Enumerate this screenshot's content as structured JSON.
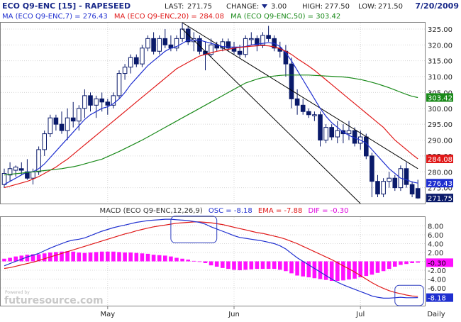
{
  "header": {
    "symbol_label": "ECO Q9-ENC [15] - RAPESEED",
    "last_label": "LAST:",
    "last_value": "271.75",
    "change_label": "CHANGE:",
    "change_value": "3.00",
    "high_label": "HIGH:",
    "high_value": "277.50",
    "low_label": "LOW:",
    "low_value": "271.50",
    "date": "7/20/2009"
  },
  "ma_legend": [
    {
      "label": "MA (ECO Q9-ENC,7) = 276.43",
      "color": "#1f2fd0"
    },
    {
      "label": "MA (ECO Q9-ENC,20) = 284.08",
      "color": "#e01818"
    },
    {
      "label": "MA (ECO Q9-ENC,50) = 303.42",
      "color": "#1a8a1a"
    }
  ],
  "macd_legend": {
    "title": "MACD (ECO Q9-ENC,12,26,9)",
    "osc": "OSC = -8.18",
    "ema": "EMA = -7.88",
    "dif": "DIF = -0.30"
  },
  "watermark": "futuresource.com",
  "watermark_small": "Powered by",
  "x_labels": [
    "May",
    "Jun",
    "Jul",
    "Daily"
  ],
  "colors": {
    "candle": "#0a1a6a",
    "ma7": "#1f2fd0",
    "ma20": "#e01818",
    "ma50": "#1a8a1a",
    "macd_line": "#1f2fd0",
    "signal_line": "#e01818",
    "histogram": "#ff10ff",
    "channel": "#000000"
  },
  "chart_data": [
    {
      "type": "candlestick",
      "title": "ECO Q9-ENC [15] - RAPESEED",
      "ylim": [
        270,
        327
      ],
      "y_ticks": [
        275.0,
        280.0,
        285.0,
        290.0,
        295.0,
        300.0,
        305.0,
        310.0,
        315.0,
        320.0,
        325.0
      ],
      "x_labels": [
        "May",
        "Jun",
        "Jul"
      ],
      "badges": [
        {
          "value": "303.42",
          "series": "ma50"
        },
        {
          "value": "284.08",
          "series": "ma20"
        },
        {
          "value": "276.43",
          "series": "ma7"
        },
        {
          "value": "271.75",
          "series": "last"
        }
      ],
      "ohlc": [
        [
          276,
          281,
          275,
          279.5
        ],
        [
          279,
          283,
          277,
          281
        ],
        [
          280.5,
          282,
          278.5,
          281.5
        ],
        [
          281,
          283,
          279,
          280.5
        ],
        [
          280,
          284,
          277.5,
          278
        ],
        [
          278,
          281,
          276,
          280
        ],
        [
          280,
          288,
          279,
          287
        ],
        [
          287,
          293,
          285,
          292
        ],
        [
          292,
          298,
          291,
          297
        ],
        [
          297,
          298,
          293,
          295
        ],
        [
          295,
          299,
          292,
          293
        ],
        [
          293,
          300,
          290,
          297
        ],
        [
          297,
          302,
          294,
          296
        ],
        [
          296,
          301,
          293,
          300
        ],
        [
          300,
          306,
          297,
          304
        ],
        [
          304,
          305,
          299,
          301
        ],
        [
          301,
          304,
          297,
          303
        ],
        [
          303,
          305,
          299,
          302
        ],
        [
          302,
          303,
          298,
          301
        ],
        [
          301,
          305,
          300,
          304
        ],
        [
          304,
          312,
          303,
          311
        ],
        [
          311,
          314,
          309,
          313
        ],
        [
          313,
          317,
          311,
          316
        ],
        [
          316,
          317,
          313,
          314
        ],
        [
          314,
          320,
          313,
          319
        ],
        [
          319,
          323,
          318,
          322
        ],
        [
          322,
          324,
          317,
          318
        ],
        [
          318,
          323,
          317,
          322
        ],
        [
          322,
          325,
          319,
          320
        ],
        [
          320,
          323,
          318,
          319
        ],
        [
          319,
          323,
          318,
          322
        ],
        [
          322,
          327,
          321,
          325
        ],
        [
          325,
          326,
          320,
          321
        ],
        [
          321,
          324,
          318,
          322
        ],
        [
          322,
          323,
          317,
          318
        ],
        [
          318,
          321,
          312,
          317
        ],
        [
          317,
          322,
          316,
          320
        ],
        [
          320,
          321,
          318,
          319
        ],
        [
          319,
          322,
          318,
          321
        ],
        [
          321,
          322,
          318,
          319
        ],
        [
          319,
          321,
          317,
          318
        ],
        [
          318,
          320,
          316,
          317
        ],
        [
          317,
          323,
          316,
          322
        ],
        [
          322,
          324,
          320,
          322
        ],
        [
          322,
          323,
          318,
          320
        ],
        [
          320,
          324,
          319,
          323
        ],
        [
          323,
          326,
          321,
          322
        ],
        [
          322,
          323,
          318,
          319
        ],
        [
          319,
          321,
          316,
          318
        ],
        [
          318,
          320,
          310,
          314
        ],
        [
          314,
          316,
          300,
          303
        ],
        [
          303,
          306,
          298,
          301
        ],
        [
          301,
          303,
          298,
          299
        ],
        [
          299,
          300,
          297,
          298
        ],
        [
          298,
          299,
          296,
          298
        ],
        [
          298,
          299,
          288,
          290
        ],
        [
          290,
          295,
          289,
          294
        ],
        [
          294,
          295,
          290,
          291
        ],
        [
          291,
          296,
          289,
          293
        ],
        [
          293,
          295,
          289,
          292
        ],
        [
          292,
          296,
          290,
          293
        ],
        [
          293,
          294,
          288,
          289
        ],
        [
          289,
          293,
          287,
          291
        ],
        [
          291,
          292,
          284,
          285
        ],
        [
          285,
          286,
          272,
          277
        ],
        [
          277,
          279,
          272,
          273
        ],
        [
          273,
          278,
          272,
          277
        ],
        [
          277,
          280,
          275,
          278
        ],
        [
          278,
          279,
          274,
          275
        ],
        [
          275,
          282,
          274,
          281
        ],
        [
          281,
          283,
          275,
          276
        ],
        [
          276,
          277,
          272,
          273
        ],
        [
          274.75,
          277.5,
          271.5,
          271.75
        ]
      ],
      "ma_series": [
        {
          "key": "ma7",
          "values": [
            276,
            277,
            278,
            279,
            280,
            280,
            281,
            282.5,
            284.5,
            286.5,
            288.5,
            290.5,
            292.5,
            294.5,
            296.5,
            298,
            299,
            300,
            300.5,
            301.5,
            303,
            305,
            307.5,
            309.5,
            311.5,
            313.5,
            315,
            316.5,
            318,
            319,
            319.5,
            320.5,
            321.5,
            321.5,
            321.5,
            321,
            320.5,
            320,
            319.5,
            319.3,
            319.3,
            319.3,
            319.5,
            320,
            320.2,
            320.5,
            320.7,
            320.5,
            319.5,
            317.5,
            315,
            312,
            309,
            306,
            303,
            300,
            297.5,
            295.5,
            294,
            292.5,
            291.5,
            290.7,
            290,
            289,
            287,
            285,
            283,
            281,
            279.5,
            278,
            277.5,
            276.8,
            276.43
          ]
        },
        {
          "key": "ma20",
          "values": [
            275,
            275.5,
            276,
            276.5,
            277,
            277.7,
            278.5,
            279.5,
            280.5,
            281.5,
            282.8,
            284,
            285.5,
            287,
            288.5,
            290,
            291.5,
            293,
            294.5,
            296,
            297.5,
            299,
            300.5,
            302,
            303.5,
            305,
            306.5,
            308,
            309.5,
            311,
            312.5,
            313.5,
            314.5,
            315.5,
            316.5,
            317,
            317.5,
            318,
            318.3,
            318.6,
            319,
            319.2,
            319.4,
            319.6,
            319.7,
            319.8,
            319.7,
            319.4,
            318.8,
            318,
            317,
            315.7,
            314.5,
            313.3,
            312,
            310.5,
            309,
            307.5,
            306,
            304.5,
            303,
            301.5,
            300,
            298.5,
            297,
            295.5,
            294,
            292,
            290,
            288.5,
            287,
            285.5,
            284.08
          ]
        },
        {
          "key": "ma50",
          "values": [
            279,
            279.2,
            279.4,
            279.6,
            279.8,
            280,
            280.2,
            280.4,
            280.6,
            280.8,
            281,
            281.3,
            281.6,
            282,
            282.5,
            283,
            283.5,
            284,
            284.8,
            285.6,
            286.4,
            287.3,
            288.2,
            289.1,
            290,
            291,
            292,
            293,
            294,
            295,
            296,
            297,
            298,
            299,
            300,
            301,
            302,
            303,
            304,
            305,
            306,
            307,
            308,
            308.6,
            309.2,
            309.7,
            310,
            310.2,
            310.4,
            310.5,
            310.5,
            310.5,
            310.5,
            310.5,
            310.4,
            310.3,
            310.2,
            310.1,
            310,
            309.9,
            309.7,
            309.4,
            309.1,
            308.7,
            308.2,
            307.7,
            307.1,
            306.5,
            305.8,
            305.1,
            304.4,
            303.8,
            303.42
          ]
        }
      ],
      "channel_lines": [
        {
          "from": [
            31,
            327
          ],
          "to": [
            72,
            281
          ]
        },
        {
          "from": [
            31,
            325
          ],
          "to": [
            62,
            270
          ]
        }
      ]
    },
    {
      "type": "macd",
      "title": "MACD (ECO Q9-ENC,12,26,9)",
      "ylim": [
        -10,
        10
      ],
      "y_ticks": [
        8.0,
        6.0,
        4.0,
        2.0,
        0.0,
        -2.0,
        -4.0,
        -6.0
      ],
      "badges": [
        {
          "value": "-0.30",
          "series": "histogram"
        },
        {
          "value": "-8.18",
          "series": "osc"
        }
      ],
      "osc": [
        -1,
        -0.5,
        0,
        0.5,
        1,
        1.4,
        1.8,
        2.4,
        3,
        3.5,
        4,
        4.5,
        4.8,
        5,
        5.3,
        5.8,
        6.3,
        6.8,
        7.2,
        7.6,
        7.9,
        8.2,
        8.5,
        8.8,
        9,
        9.2,
        9.3,
        9.4,
        9.5,
        9.5,
        9.4,
        9.3,
        9.2,
        9,
        8.8,
        8.4,
        7.8,
        7.3,
        6.8,
        6.3,
        5.8,
        5.4,
        5.2,
        5,
        4.8,
        4.6,
        4.3,
        4,
        3.5,
        2.8,
        1.8,
        0.8,
        0,
        -0.8,
        -1.6,
        -2.4,
        -3.2,
        -4,
        -4.7,
        -5.3,
        -5.8,
        -6.3,
        -6.8,
        -7.3,
        -7.8,
        -8.1,
        -8.3,
        -8.3,
        -8.2,
        -8.1,
        -8.2,
        -8.2,
        -8.18
      ],
      "ema": [
        -1.6,
        -1.4,
        -1.1,
        -0.8,
        -0.5,
        -0.2,
        0.2,
        0.6,
        1,
        1.4,
        1.8,
        2.2,
        2.6,
        3,
        3.4,
        3.8,
        4.2,
        4.6,
        5,
        5.4,
        5.8,
        6.2,
        6.5,
        6.9,
        7.2,
        7.5,
        7.8,
        8,
        8.2,
        8.4,
        8.6,
        8.7,
        8.8,
        8.9,
        8.9,
        8.8,
        8.7,
        8.5,
        8.3,
        8,
        7.7,
        7.4,
        7.1,
        6.8,
        6.5,
        6.3,
        6,
        5.7,
        5.4,
        5,
        4.5,
        4,
        3.4,
        2.8,
        2.2,
        1.6,
        1,
        0.4,
        -0.3,
        -1,
        -1.7,
        -2.4,
        -3.2,
        -4,
        -4.8,
        -5.5,
        -6.1,
        -6.6,
        -7,
        -7.3,
        -7.6,
        -7.8,
        -7.88
      ],
      "dif": [
        0.6,
        0.8,
        1.1,
        1.3,
        1.5,
        1.6,
        1.6,
        1.8,
        2,
        2.1,
        2.2,
        2.3,
        2.2,
        2,
        1.9,
        2,
        2.1,
        2.2,
        2.2,
        2.2,
        2.1,
        2,
        2,
        1.9,
        1.8,
        1.7,
        1.5,
        1.4,
        1.3,
        1.1,
        0.8,
        0.6,
        0.4,
        0.1,
        -0.1,
        -0.4,
        -0.9,
        -1.2,
        -1.5,
        -1.7,
        -1.9,
        -2,
        -1.9,
        -1.8,
        -1.7,
        -1.7,
        -1.7,
        -1.7,
        -1.9,
        -2.2,
        -2.7,
        -3.2,
        -3.4,
        -3.6,
        -3.8,
        -4,
        -4.2,
        -4.4,
        -4.4,
        -4.3,
        -4.1,
        -3.9,
        -3.6,
        -3.3,
        -3,
        -2.6,
        -2.2,
        -1.7,
        -1.2,
        -0.8,
        -0.6,
        -0.4,
        -0.3
      ]
    }
  ]
}
